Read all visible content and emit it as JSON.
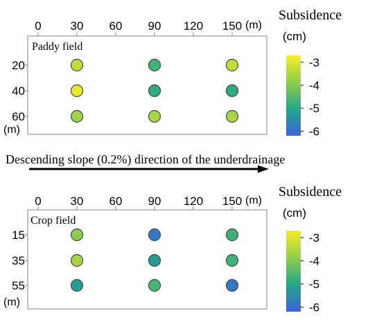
{
  "chart_data": [
    {
      "type": "scatter",
      "title": "Paddy field",
      "x_unit": "(m)",
      "y_unit": "(m)",
      "x_ticks": [
        0,
        30,
        60,
        90,
        120,
        150
      ],
      "y_ticks": [
        20,
        40,
        60
      ],
      "xlim": [
        0,
        150
      ],
      "ylim": [
        20,
        60
      ],
      "y_inverted": true,
      "points": [
        {
          "x": 30,
          "y": 20,
          "value": -3.3
        },
        {
          "x": 90,
          "y": 20,
          "value": -4.7
        },
        {
          "x": 150,
          "y": 20,
          "value": -3.3
        },
        {
          "x": 30,
          "y": 40,
          "value": -2.9
        },
        {
          "x": 90,
          "y": 40,
          "value": -4.9
        },
        {
          "x": 150,
          "y": 40,
          "value": -4.9
        },
        {
          "x": 30,
          "y": 60,
          "value": -3.7
        },
        {
          "x": 90,
          "y": 60,
          "value": -3.6
        },
        {
          "x": 150,
          "y": 60,
          "value": -3.6
        }
      ],
      "colorbar": {
        "title": "Subsidence",
        "unit": "(cm)",
        "ticks": [
          -3,
          -4,
          -5,
          -6
        ],
        "range": [
          -6.2,
          -2.7
        ],
        "colors": [
          "#3b62e0",
          "#21a78a",
          "#8fcf4b",
          "#f5ee22"
        ]
      }
    },
    {
      "type": "scatter",
      "title": "Crop field",
      "x_unit": "(m)",
      "y_unit": "(m)",
      "x_ticks": [
        0,
        30,
        60,
        90,
        120,
        150
      ],
      "y_ticks": [
        15,
        35,
        55
      ],
      "xlim": [
        0,
        150
      ],
      "ylim": [
        15,
        55
      ],
      "y_inverted": true,
      "points": [
        {
          "x": 30,
          "y": 15,
          "value": -3.9
        },
        {
          "x": 90,
          "y": 15,
          "value": -5.8
        },
        {
          "x": 150,
          "y": 15,
          "value": -4.7
        },
        {
          "x": 30,
          "y": 35,
          "value": -3.6
        },
        {
          "x": 90,
          "y": 35,
          "value": -5.2
        },
        {
          "x": 150,
          "y": 35,
          "value": -4.7
        },
        {
          "x": 30,
          "y": 55,
          "value": -5.2
        },
        {
          "x": 90,
          "y": 55,
          "value": -4.6
        },
        {
          "x": 150,
          "y": 55,
          "value": -5.8
        }
      ],
      "colorbar": {
        "title": "Subsidence",
        "unit": "(cm)",
        "ticks": [
          -3,
          -4,
          -5,
          -6
        ],
        "range": [
          -6.2,
          -2.7
        ],
        "colors": [
          "#3b62e0",
          "#21a78a",
          "#8fcf4b",
          "#f5ee22"
        ]
      }
    }
  ],
  "slope_annotation": "Descending slope (0.2%) direction of the underdrainage"
}
